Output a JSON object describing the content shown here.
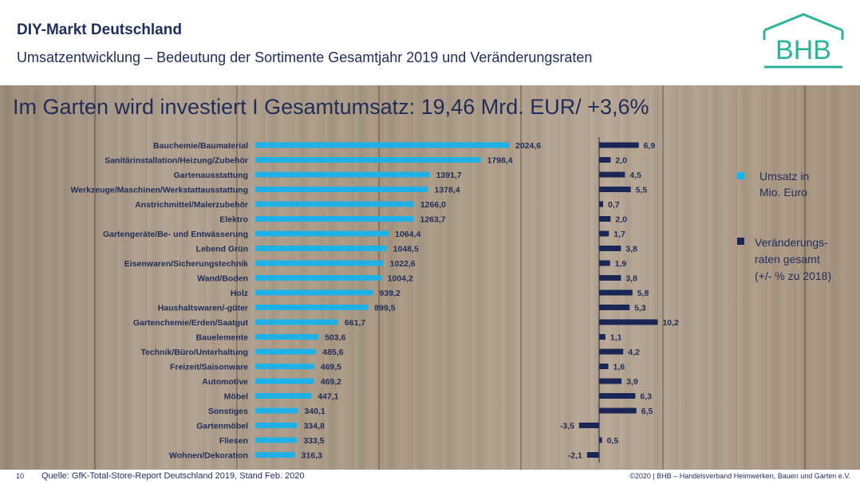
{
  "header": {
    "title": "DIY-Markt Deutschland",
    "subtitle": "Umsatzentwicklung – Bedeutung der Sortimente Gesamtjahr 2019 und Veränderungsraten"
  },
  "logo": {
    "text": "BHB",
    "color": "#2bb39a"
  },
  "banner": "Im Garten wird investiert  I  Gesamtumsatz: 19,46 Mrd. EUR/ +3,6%",
  "colors": {
    "umsatz": "#1fb0e6",
    "veraenderung": "#1a2656",
    "text": "#1f2d5a"
  },
  "chart_data": {
    "type": "bar",
    "orientation": "horizontal",
    "categories": [
      "Bauchemie/Baumaterial",
      "Sanitärinstallation/Heizung/Zubehör",
      "Gartenausstattung",
      "Werkzeuge/Maschinen/Werkstattausstattung",
      "Anstrichmittel/Malerzubehör",
      "Elektro",
      "Gartengeräte/Be- und Entwässerung",
      "Lebend Grün",
      "Eisenwaren/Sicherungstechnik",
      "Wand/Boden",
      "Holz",
      "Haushaltswaren/-güter",
      "Gartenchemie/Erden/Saatgut",
      "Bauelemente",
      "Technik/Büro/Unterhaltung",
      "Freizeit/Saisonware",
      "Automotive",
      "Möbel",
      "Sonstiges",
      "Gartenmöbel",
      "Fliesen",
      "Wohnen/Dekoration"
    ],
    "series": [
      {
        "name": "Umsatz in Mio. Euro",
        "values": [
          2024.6,
          1798.4,
          1391.7,
          1378.4,
          1266.0,
          1263.7,
          1064.4,
          1048.5,
          1022.6,
          1004.2,
          939.2,
          899.5,
          661.7,
          503.6,
          485.6,
          469.5,
          469.2,
          447.1,
          340.1,
          334.8,
          333.5,
          316.3
        ],
        "labels": [
          "2024,6",
          "1798,4",
          "1391,7",
          "1378,4",
          "1266,0",
          "1263,7",
          "1064,4",
          "1048,5",
          "1022,6",
          "1004,2",
          "939,2",
          "899,5",
          "661,7",
          "503,6",
          "485,6",
          "469,5",
          "469,2",
          "447,1",
          "340,1",
          "334,8",
          "333,5",
          "316,3"
        ]
      },
      {
        "name": "Veränderungs-raten gesamt (+/- % zu 2018)",
        "values": [
          6.9,
          2.0,
          4.5,
          5.5,
          0.7,
          2.0,
          1.7,
          3.8,
          1.9,
          3.8,
          5.8,
          5.3,
          10.2,
          1.1,
          4.2,
          1.6,
          3.9,
          6.3,
          6.5,
          -3.5,
          0.5,
          -2.1
        ],
        "labels": [
          "6,9",
          "2,0",
          "4,5",
          "5,5",
          "0,7",
          "2,0",
          "1,7",
          "3,8",
          "1,9",
          "3,8",
          "5,8",
          "5,3",
          "10,2",
          "1,1",
          "4,2",
          "1,6",
          "3,9",
          "6,3",
          "6,5",
          "-3,5",
          "0,5",
          "-2,1"
        ]
      }
    ],
    "legend": {
      "placement": "right",
      "umsatz_lines": [
        "Umsatz in",
        "Mio. Euro"
      ],
      "veraenderung_lines": [
        "Veränderungs-",
        "raten gesamt",
        "(+/- % zu 2018)"
      ]
    }
  },
  "footer": {
    "page": "10",
    "source": "Quelle: GfK-Total-Store-Report Deutschland 2019, Stand Feb. 2020",
    "copyright": "©2020 | BHB – Handelsverband Heimwerken, Bauen und Garten e.V."
  }
}
